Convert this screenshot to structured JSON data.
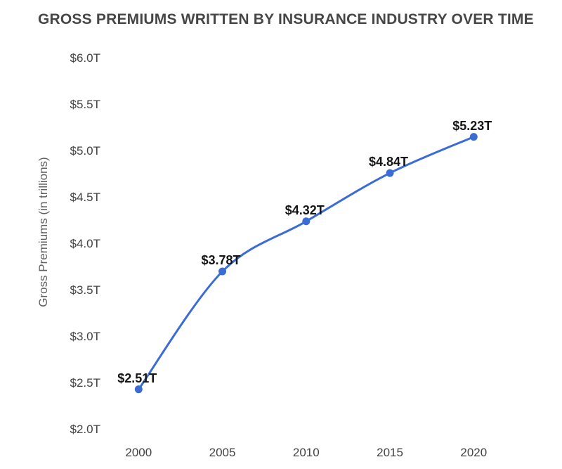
{
  "chart": {
    "title": "GROSS PREMIUMS WRITTEN BY INSURANCE INDUSTRY OVER TIME",
    "y_axis_title": "Gross Premiums (in trillions)"
  },
  "chart_data": {
    "type": "line",
    "title": "GROSS PREMIUMS WRITTEN BY INSURANCE INDUSTRY OVER TIME",
    "xlabel": "",
    "ylabel": "Gross Premiums (in trillions)",
    "x": [
      2000,
      2005,
      2010,
      2015,
      2020
    ],
    "x_tick_labels": [
      "2000",
      "2005",
      "2010",
      "2015",
      "2020"
    ],
    "values": [
      2.51,
      3.78,
      4.32,
      4.84,
      5.23
    ],
    "point_labels": [
      "$2.51T",
      "$3.78T",
      "$4.32T",
      "$4.84T",
      "$5.23T"
    ],
    "y_ticks": [
      2.0,
      2.5,
      3.0,
      3.5,
      4.0,
      4.5,
      5.0,
      5.5,
      6.0
    ],
    "y_tick_labels": [
      "$2.0T",
      "$2.5T",
      "$3.0T",
      "$3.5T",
      "$4.0T",
      "$4.5T",
      "$5.0T",
      "$5.5T",
      "$6.0T"
    ],
    "ylim": [
      2.0,
      6.0
    ],
    "xlim": [
      2000,
      2020
    ],
    "grid": false,
    "legend": "none",
    "smooth": true,
    "line_color": "#3B6CD6",
    "point_color": "#3B6CD6"
  }
}
